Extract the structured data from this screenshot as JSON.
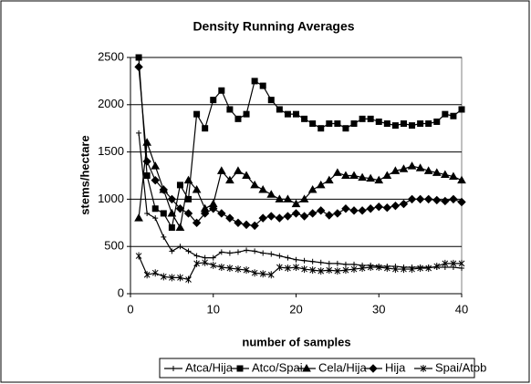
{
  "chart_data": {
    "type": "line",
    "title": "Density Running Averages",
    "x_label": "number of samples",
    "y_label": "stems/hectare",
    "x": [
      1,
      2,
      3,
      4,
      5,
      6,
      7,
      8,
      9,
      10,
      11,
      12,
      13,
      14,
      15,
      16,
      17,
      18,
      19,
      20,
      21,
      22,
      23,
      24,
      25,
      26,
      27,
      28,
      29,
      30,
      31,
      32,
      33,
      34,
      35,
      36,
      37,
      38,
      39,
      40
    ],
    "xlim": [
      0,
      40
    ],
    "xticks": [
      0,
      10,
      20,
      30,
      40
    ],
    "ylim": [
      0,
      2500
    ],
    "yticks": [
      0,
      500,
      1000,
      1500,
      2000,
      2500
    ],
    "grid": true,
    "legend": "bottom",
    "series": [
      {
        "name": "Atca/Hija",
        "color": "#000000",
        "marker": "plus",
        "values": [
          1700,
          850,
          800,
          600,
          450,
          500,
          450,
          400,
          380,
          380,
          440,
          430,
          440,
          460,
          450,
          430,
          420,
          400,
          380,
          360,
          350,
          340,
          330,
          320,
          320,
          310,
          310,
          300,
          300,
          290,
          290,
          290,
          280,
          280,
          280,
          280,
          280,
          280,
          280,
          270
        ]
      },
      {
        "name": "Atco/Spai",
        "color": "#000000",
        "marker": "square",
        "values": [
          2500,
          1250,
          900,
          850,
          700,
          1150,
          1000,
          1900,
          1750,
          2050,
          2150,
          1950,
          1850,
          1900,
          2250,
          2200,
          2050,
          1950,
          1900,
          1900,
          1850,
          1800,
          1750,
          1800,
          1800,
          1750,
          1800,
          1850,
          1850,
          1820,
          1800,
          1780,
          1800,
          1780,
          1800,
          1800,
          1820,
          1900,
          1880,
          1950
        ]
      },
      {
        "name": "Cela/Hija",
        "color": "#000000",
        "marker": "triangle",
        "values": [
          800,
          1600,
          1350,
          1100,
          850,
          700,
          1200,
          1100,
          900,
          950,
          1300,
          1200,
          1300,
          1250,
          1150,
          1100,
          1050,
          1000,
          1000,
          950,
          1000,
          1100,
          1150,
          1200,
          1280,
          1250,
          1250,
          1230,
          1220,
          1200,
          1250,
          1300,
          1320,
          1350,
          1330,
          1300,
          1280,
          1260,
          1240,
          1200
        ]
      },
      {
        "name": "Hija",
        "color": "#000000",
        "marker": "diamond",
        "values": [
          2400,
          1400,
          1200,
          1100,
          1000,
          900,
          850,
          750,
          850,
          900,
          850,
          800,
          750,
          730,
          720,
          800,
          820,
          800,
          820,
          850,
          820,
          850,
          880,
          830,
          850,
          900,
          880,
          880,
          900,
          920,
          910,
          930,
          950,
          1000,
          1000,
          1000,
          990,
          980,
          1000,
          970
        ]
      },
      {
        "name": "Spai/Atob",
        "color": "#000000",
        "marker": "star",
        "values": [
          400,
          200,
          220,
          180,
          170,
          170,
          150,
          320,
          330,
          300,
          280,
          270,
          260,
          250,
          220,
          210,
          200,
          280,
          270,
          280,
          260,
          250,
          240,
          250,
          240,
          250,
          260,
          270,
          280,
          280,
          270,
          260,
          260,
          260,
          270,
          270,
          290,
          320,
          320,
          320
        ]
      }
    ]
  }
}
